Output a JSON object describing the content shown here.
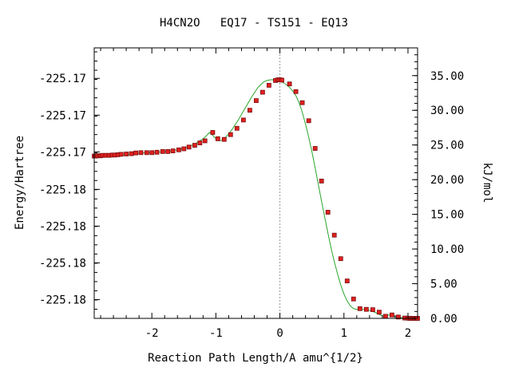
{
  "chart_data": {
    "type": "line",
    "title": "H4CN2O   EQ17 - TS151 - EQ13",
    "xlabel": "Reaction Path Length/A amu^{1/2}",
    "ylabel_left": "Energy/Hartree",
    "ylabel_right": "kJ/mol",
    "x_ticks": [
      -2,
      -1,
      0,
      1,
      2
    ],
    "y_left_ticks": [
      "-225.17",
      "-225.17",
      "-225.17",
      "-225.18",
      "-225.18",
      "-225.18",
      "-225.18"
    ],
    "y_left_tick_kj": [
      34.6,
      29.3,
      24.0,
      18.6,
      13.3,
      8.0,
      2.7
    ],
    "y_right_ticks": [
      "0.00",
      "5.00",
      "10.00",
      "15.00",
      "20.00",
      "25.00",
      "30.00",
      "35.00"
    ],
    "y_right_tick_values": [
      0,
      5,
      10,
      15,
      20,
      25,
      30,
      35
    ],
    "xlim": [
      -2.9,
      2.15
    ],
    "ylim_kj": [
      0,
      39
    ],
    "ts_line_x": 0,
    "colors": {
      "curve": "#2aa52a",
      "marker": "#e02020",
      "marker_edge": "#7a1010",
      "axis": "#000000",
      "ts_line": "#999999"
    },
    "series": [
      {
        "x": [
          -2.9,
          -2.85,
          -2.8,
          -2.75,
          -2.7,
          -2.65,
          -2.6,
          -2.55,
          -2.5,
          -2.45,
          -2.4,
          -2.35,
          -2.3,
          -2.25,
          -2.2,
          -2.15,
          -2.1,
          -2.05,
          -2.0,
          -1.95,
          -1.9,
          -1.85,
          -1.8,
          -1.75,
          -1.7,
          -1.65,
          -1.6,
          -1.55,
          -1.5,
          -1.45,
          -1.4,
          -1.35,
          -1.3,
          -1.25,
          -1.2,
          -1.15,
          -1.1,
          -1.05,
          -1.0,
          -0.95,
          -0.9,
          -0.85,
          -0.8,
          -0.75,
          -0.7,
          -0.65,
          -0.6,
          -0.55,
          -0.5,
          -0.45,
          -0.4,
          -0.35,
          -0.3,
          -0.25,
          -0.2,
          -0.15,
          -0.1,
          -0.05,
          0.0,
          0.05,
          0.1,
          0.15,
          0.2,
          0.25,
          0.3,
          0.35,
          0.4,
          0.45,
          0.5,
          0.55,
          0.6,
          0.65,
          0.7,
          0.75,
          0.8,
          0.85,
          0.9,
          0.95,
          1.0,
          1.05,
          1.1,
          1.15,
          1.2,
          1.25,
          1.3,
          1.35,
          1.4,
          1.45,
          1.5,
          1.55,
          1.6,
          1.65,
          1.7,
          1.75,
          1.8,
          1.85,
          1.9,
          1.95,
          2.0,
          2.05,
          2.1,
          2.15
        ],
        "y": [
          23.4,
          23.4,
          23.45,
          23.45,
          23.5,
          23.5,
          23.5,
          23.55,
          23.6,
          23.6,
          23.65,
          23.65,
          23.7,
          23.75,
          23.8,
          23.85,
          23.9,
          23.9,
          23.9,
          23.9,
          23.95,
          24.0,
          24.05,
          24.05,
          24.1,
          24.2,
          24.3,
          24.4,
          24.55,
          24.7,
          24.85,
          25.05,
          25.3,
          25.6,
          25.9,
          26.3,
          26.8,
          26.4,
          25.9,
          25.6,
          25.7,
          26.1,
          26.6,
          27.2,
          27.9,
          28.6,
          29.4,
          30.2,
          31.0,
          31.8,
          32.5,
          33.2,
          33.7,
          34.1,
          34.3,
          34.4,
          34.4,
          34.35,
          34.25,
          34.0,
          33.7,
          33.3,
          32.8,
          32.1,
          31.1,
          29.7,
          28.0,
          26.1,
          24.0,
          21.7,
          19.3,
          16.9,
          14.6,
          12.3,
          10.1,
          8.2,
          6.4,
          4.8,
          3.5,
          2.5,
          1.8,
          1.4,
          1.3,
          1.3,
          1.3,
          1.25,
          1.15,
          1.0,
          0.8,
          0.55,
          0.35,
          0.3,
          0.5,
          0.45,
          0.25,
          0.15,
          0.1,
          0.05,
          0.02,
          0.0,
          0.0,
          0.0
        ],
        "markers_x": [
          -2.9,
          -2.88,
          -2.85,
          -2.82,
          -2.8,
          -2.77,
          -2.72,
          -2.67,
          -2.62,
          -2.58,
          -2.53,
          -2.48,
          -2.4,
          -2.32,
          -2.25,
          -2.17,
          -2.08,
          -2.0,
          -1.92,
          -1.83,
          -1.75,
          -1.67,
          -1.58,
          -1.5,
          -1.42,
          -1.33,
          -1.25,
          -1.17,
          -1.05,
          -0.97,
          -0.87,
          -0.77,
          -0.67,
          -0.57,
          -0.47,
          -0.37,
          -0.27,
          -0.17,
          -0.07,
          -0.03,
          0.0,
          0.03,
          0.15,
          0.25,
          0.35,
          0.45,
          0.55,
          0.65,
          0.75,
          0.85,
          0.95,
          1.05,
          1.15,
          1.25,
          1.35,
          1.45,
          1.55,
          1.65,
          1.75,
          1.85,
          1.95,
          2.0,
          2.03,
          2.05,
          2.07,
          2.09,
          2.1,
          2.12,
          2.13,
          2.14,
          2.15
        ],
        "markers_y": [
          23.4,
          23.4,
          23.45,
          23.45,
          23.45,
          23.5,
          23.5,
          23.5,
          23.55,
          23.55,
          23.6,
          23.65,
          23.7,
          23.75,
          23.85,
          23.9,
          23.9,
          23.9,
          23.95,
          24.05,
          24.05,
          24.15,
          24.3,
          24.45,
          24.7,
          24.95,
          25.3,
          25.6,
          26.8,
          25.9,
          25.8,
          26.5,
          27.4,
          28.6,
          30.0,
          31.4,
          32.6,
          33.6,
          34.3,
          34.4,
          34.4,
          34.35,
          33.8,
          32.7,
          31.1,
          28.5,
          24.5,
          19.8,
          15.3,
          12.0,
          8.6,
          5.4,
          2.8,
          1.4,
          1.3,
          1.25,
          0.9,
          0.3,
          0.5,
          0.2,
          0.05,
          0.02,
          0.0,
          0.0,
          0.0,
          0.0,
          0.0,
          0.0,
          0.0,
          0.0,
          0.0
        ]
      }
    ]
  }
}
